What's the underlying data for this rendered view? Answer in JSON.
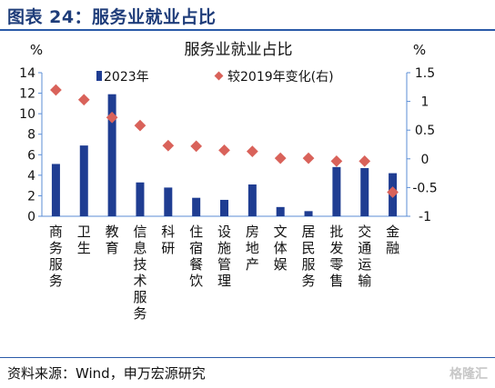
{
  "figure_title": "图表 24：服务业就业占比",
  "source": "资料来源：Wind，申万宏源研究",
  "watermark": "格隆汇",
  "colors": {
    "bar": "#1f3d92",
    "marker": "#d9625a",
    "axis": "#5b8ed6",
    "text": "#111111"
  },
  "chart_data": {
    "type": "bar",
    "title": "服务业就业占比",
    "y_left_unit": "%",
    "y_right_unit": "%",
    "ylim_left": [
      0,
      14
    ],
    "ylim_right": [
      -1,
      1.5
    ],
    "yticks_left": [
      "0",
      "2",
      "4",
      "6",
      "8",
      "10",
      "12",
      "14"
    ],
    "yticks_right": [
      "-1",
      "-0.5",
      "0",
      "0.5",
      "1",
      "1.5"
    ],
    "grid": false,
    "legend_position": "top",
    "categories": [
      "商务服务",
      "卫生",
      "教育",
      "信息技术服务",
      "科研",
      "住宿餐饮",
      "设施管理",
      "房地产",
      "文体娱",
      "居民服务",
      "批发零售",
      "交通运输",
      "金融"
    ],
    "series": [
      {
        "name": "2023年",
        "type": "bar",
        "axis": "left",
        "values": [
          5.1,
          6.9,
          11.9,
          3.3,
          2.8,
          1.8,
          1.6,
          3.1,
          0.9,
          0.5,
          4.8,
          4.7,
          4.2
        ]
      },
      {
        "name": "较2019年变化(右)",
        "type": "scatter",
        "axis": "right",
        "values": [
          1.2,
          1.03,
          0.72,
          0.58,
          0.23,
          0.22,
          0.15,
          0.13,
          0.01,
          0.01,
          -0.04,
          -0.04,
          -0.58
        ]
      }
    ]
  }
}
